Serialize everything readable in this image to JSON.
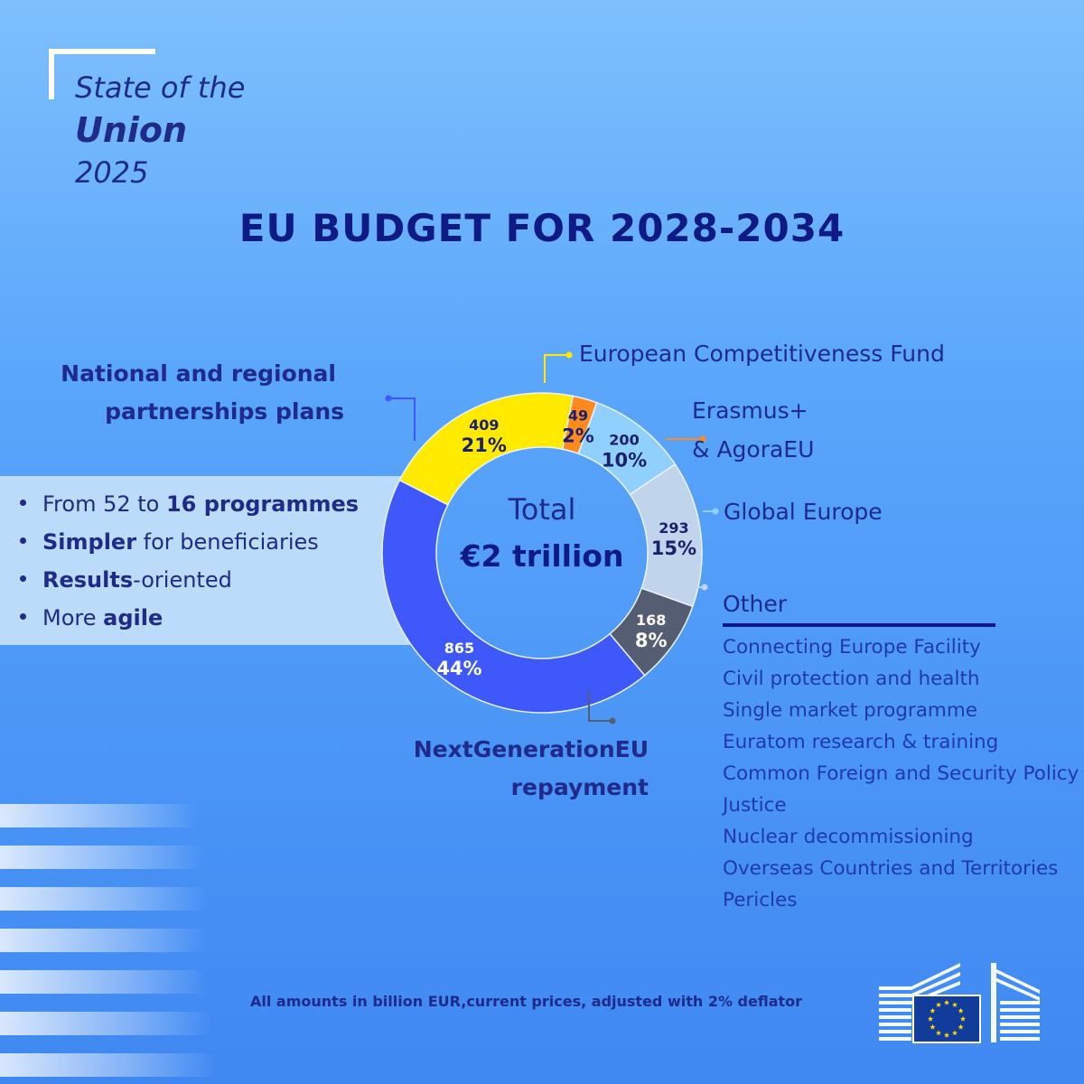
{
  "branding": {
    "line1": "State of the",
    "line2": "Union",
    "line3": "2025"
  },
  "title": "EU BUDGET FOR 2028-2034",
  "bullets": [
    {
      "parts": [
        {
          "t": "From 52 to ",
          "b": false
        },
        {
          "t": "16 programmes",
          "b": true
        }
      ]
    },
    {
      "parts": [
        {
          "t": "Simpler",
          "b": true
        },
        {
          "t": " for beneficiaries",
          "b": false
        }
      ]
    },
    {
      "parts": [
        {
          "t": "Results",
          "b": true
        },
        {
          "t": "-oriented",
          "b": false
        }
      ]
    },
    {
      "parts": [
        {
          "t": "More ",
          "b": false
        },
        {
          "t": "agile",
          "b": true
        }
      ]
    }
  ],
  "labels": {
    "national_line1": "National and regional",
    "national_line2": "partnerships plans",
    "competitiveness": "European Competitiveness Fund",
    "erasmus_line1": "Erasmus+",
    "erasmus_line2": "& AgoraEU",
    "global": "Global Europe",
    "ngeu_line1": "NextGenerationEU",
    "ngeu_line2": "repayment"
  },
  "other": {
    "title": "Other",
    "items": [
      "Connecting Europe Facility",
      "Civil protection and health",
      "Single market programme",
      "Euratom research & training",
      "Common Foreign and Security Policy",
      "Justice",
      "Nuclear decommissioning",
      "Overseas Countries and Territories",
      "Pericles"
    ]
  },
  "footnote": "All amounts in billion EUR,current prices, adjusted with 2% deflator",
  "chart_data": {
    "type": "pie",
    "subtype": "donut",
    "title": "EU BUDGET FOR 2028-2034",
    "center_label": "Total",
    "center_value": "€2 trillion",
    "unit": "billion EUR",
    "slices": [
      {
        "name": "European Competitiveness Fund",
        "value": 409,
        "value_label": "409",
        "pct_label": "21%",
        "color": "#ffea00",
        "text_color": "#1a1f6e"
      },
      {
        "name": "Erasmus+ & AgoraEU",
        "value": 49,
        "value_label": "49",
        "pct_label": "2%",
        "color": "#ff8a1f",
        "text_color": "#1a1f6e"
      },
      {
        "name": "Global Europe",
        "value": 200,
        "value_label": "200",
        "pct_label": "10%",
        "color": "#8fd0ff",
        "text_color": "#1a1f6e"
      },
      {
        "name": "Other",
        "value": 293,
        "value_label": "293",
        "pct_label": "15%",
        "color": "#c0d4ec",
        "text_color": "#1a1f6e"
      },
      {
        "name": "NextGenerationEU repayment",
        "value": 168,
        "value_label": "168",
        "pct_label": "8%",
        "color": "#545d72",
        "text_color": "#ffffff"
      },
      {
        "name": "National and regional partnerships plans",
        "value": 865,
        "value_label": "865",
        "pct_label": "44%",
        "color": "#3f58fb",
        "text_color": "#ffffff"
      }
    ]
  }
}
